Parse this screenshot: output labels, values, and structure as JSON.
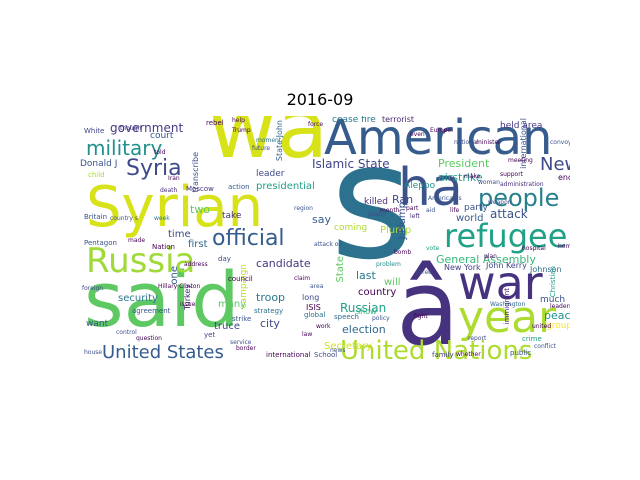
{
  "title": "2016-09",
  "colors": {
    "dark_purple": "#46327e",
    "blue": "#365c8d",
    "teal": "#277f8e",
    "green_teal": "#1fa187",
    "green": "#4ac16d",
    "light_green": "#a0da39",
    "yellow": "#d8e219"
  },
  "words": {
    "wa": "wa",
    "said": "said",
    "s": "s",
    "american": "American",
    "syrian": "Syrian",
    "ha": "ha",
    "a_circ": "â",
    "war": "war",
    "year": "year",
    "united_nations": "United Nations",
    "refugee": "refugee",
    "russia": "Russia",
    "people": "people",
    "official": "official",
    "syria": "Syria",
    "military": "military",
    "united_states": "United States",
    "new": "New",
    "government": "government",
    "islamic_state": "Islamic State",
    "president": "President",
    "airstrike": "airstrike",
    "attack": "attack",
    "general_assembly": "General Assembly",
    "candidate": "candidate",
    "russian": "Russian",
    "election": "election",
    "plump": "Plump",
    "country": "country",
    "last": "last",
    "will": "will",
    "truce": "truce",
    "city": "city",
    "troop": "troop",
    "peace": "peace",
    "group": "group",
    "much": "much",
    "want": "want",
    "security": "security",
    "many": "many",
    "time": "time",
    "first": "first",
    "two": "two",
    "take": "take",
    "presidential": "presidential",
    "say": "say",
    "coming": "coming",
    "killed": "killed",
    "ran": "Ran",
    "world": "world",
    "party": "party",
    "secretary": "Secretary",
    "donald_j": "Donald J",
    "court": "court",
    "leader": "leader",
    "aleppo": "Aleppo",
    "new_york": "New York",
    "john_kerry": "John Kerry",
    "johnson": "Johnson",
    "held_area": "held area",
    "cease_fire": "cease fire",
    "terrorist": "terrorist",
    "show": "show",
    "isis": "ISIS",
    "long": "long",
    "end": "end",
    "one": "one",
    "campaign": "campaign",
    "state": "State",
    "j_plump": "J Plump",
    "state_john": "State John",
    "strike": "strike",
    "nation": "Nation",
    "moscow": "Moscow",
    "action": "action",
    "day": "day",
    "transcribe": "transcribe",
    "strategy": "strategy",
    "international": "international",
    "speech": "speech",
    "turkey": "Turkey",
    "white": "White",
    "child": "child",
    "britain": "Britain",
    "pentagon": "Pentagon",
    "yet": "yet",
    "global": "global",
    "school": "School",
    "family": "family",
    "christian": "Christian",
    "public": "public",
    "crime": "crime",
    "immigrant": "immigrant",
    "administration": "administration",
    "council": "council",
    "agreement": "agreement",
    "rebel": "rebel",
    "hillary_clinton": "Hillary Clinton",
    "service": "service",
    "control": "control",
    "week": "week",
    "help": "help",
    "though": "though",
    "force": "force",
    "house": "house",
    "attack_on": "attack on",
    "law": "law",
    "news": "news",
    "problem": "problem",
    "vote": "vote",
    "month": "month",
    "weapon": "weapon",
    "support": "support",
    "left": "left",
    "part": "part",
    "meeting": "meeting",
    "woman": "woman",
    "power": "power",
    "make": "make",
    "plan": "plan",
    "conflict": "conflict",
    "washington": "Washington",
    "report": "report",
    "three": "three",
    "american_s": "American s",
    "future": "future",
    "moment": "moment",
    "address": "address",
    "issue": "issue",
    "border": "border",
    "question": "question",
    "foreign": "foreign",
    "country_s": "country s",
    "made": "made",
    "told": "told",
    "death": "death",
    "iran": "Iran",
    "trump": "Trump",
    "region": "region",
    "claim": "claim",
    "area": "area",
    "work": "work",
    "policy": "policy",
    "fight": "fight",
    "bomb": "bomb",
    "aid": "aid",
    "life": "life",
    "hospital": "hospital",
    "home": "home",
    "whether": "whether",
    "convoy": "convoy",
    "minister": "minister",
    "national": "national",
    "europe": "Europe",
    "even": "even",
    "united": "united",
    "leaders": "leaders"
  }
}
